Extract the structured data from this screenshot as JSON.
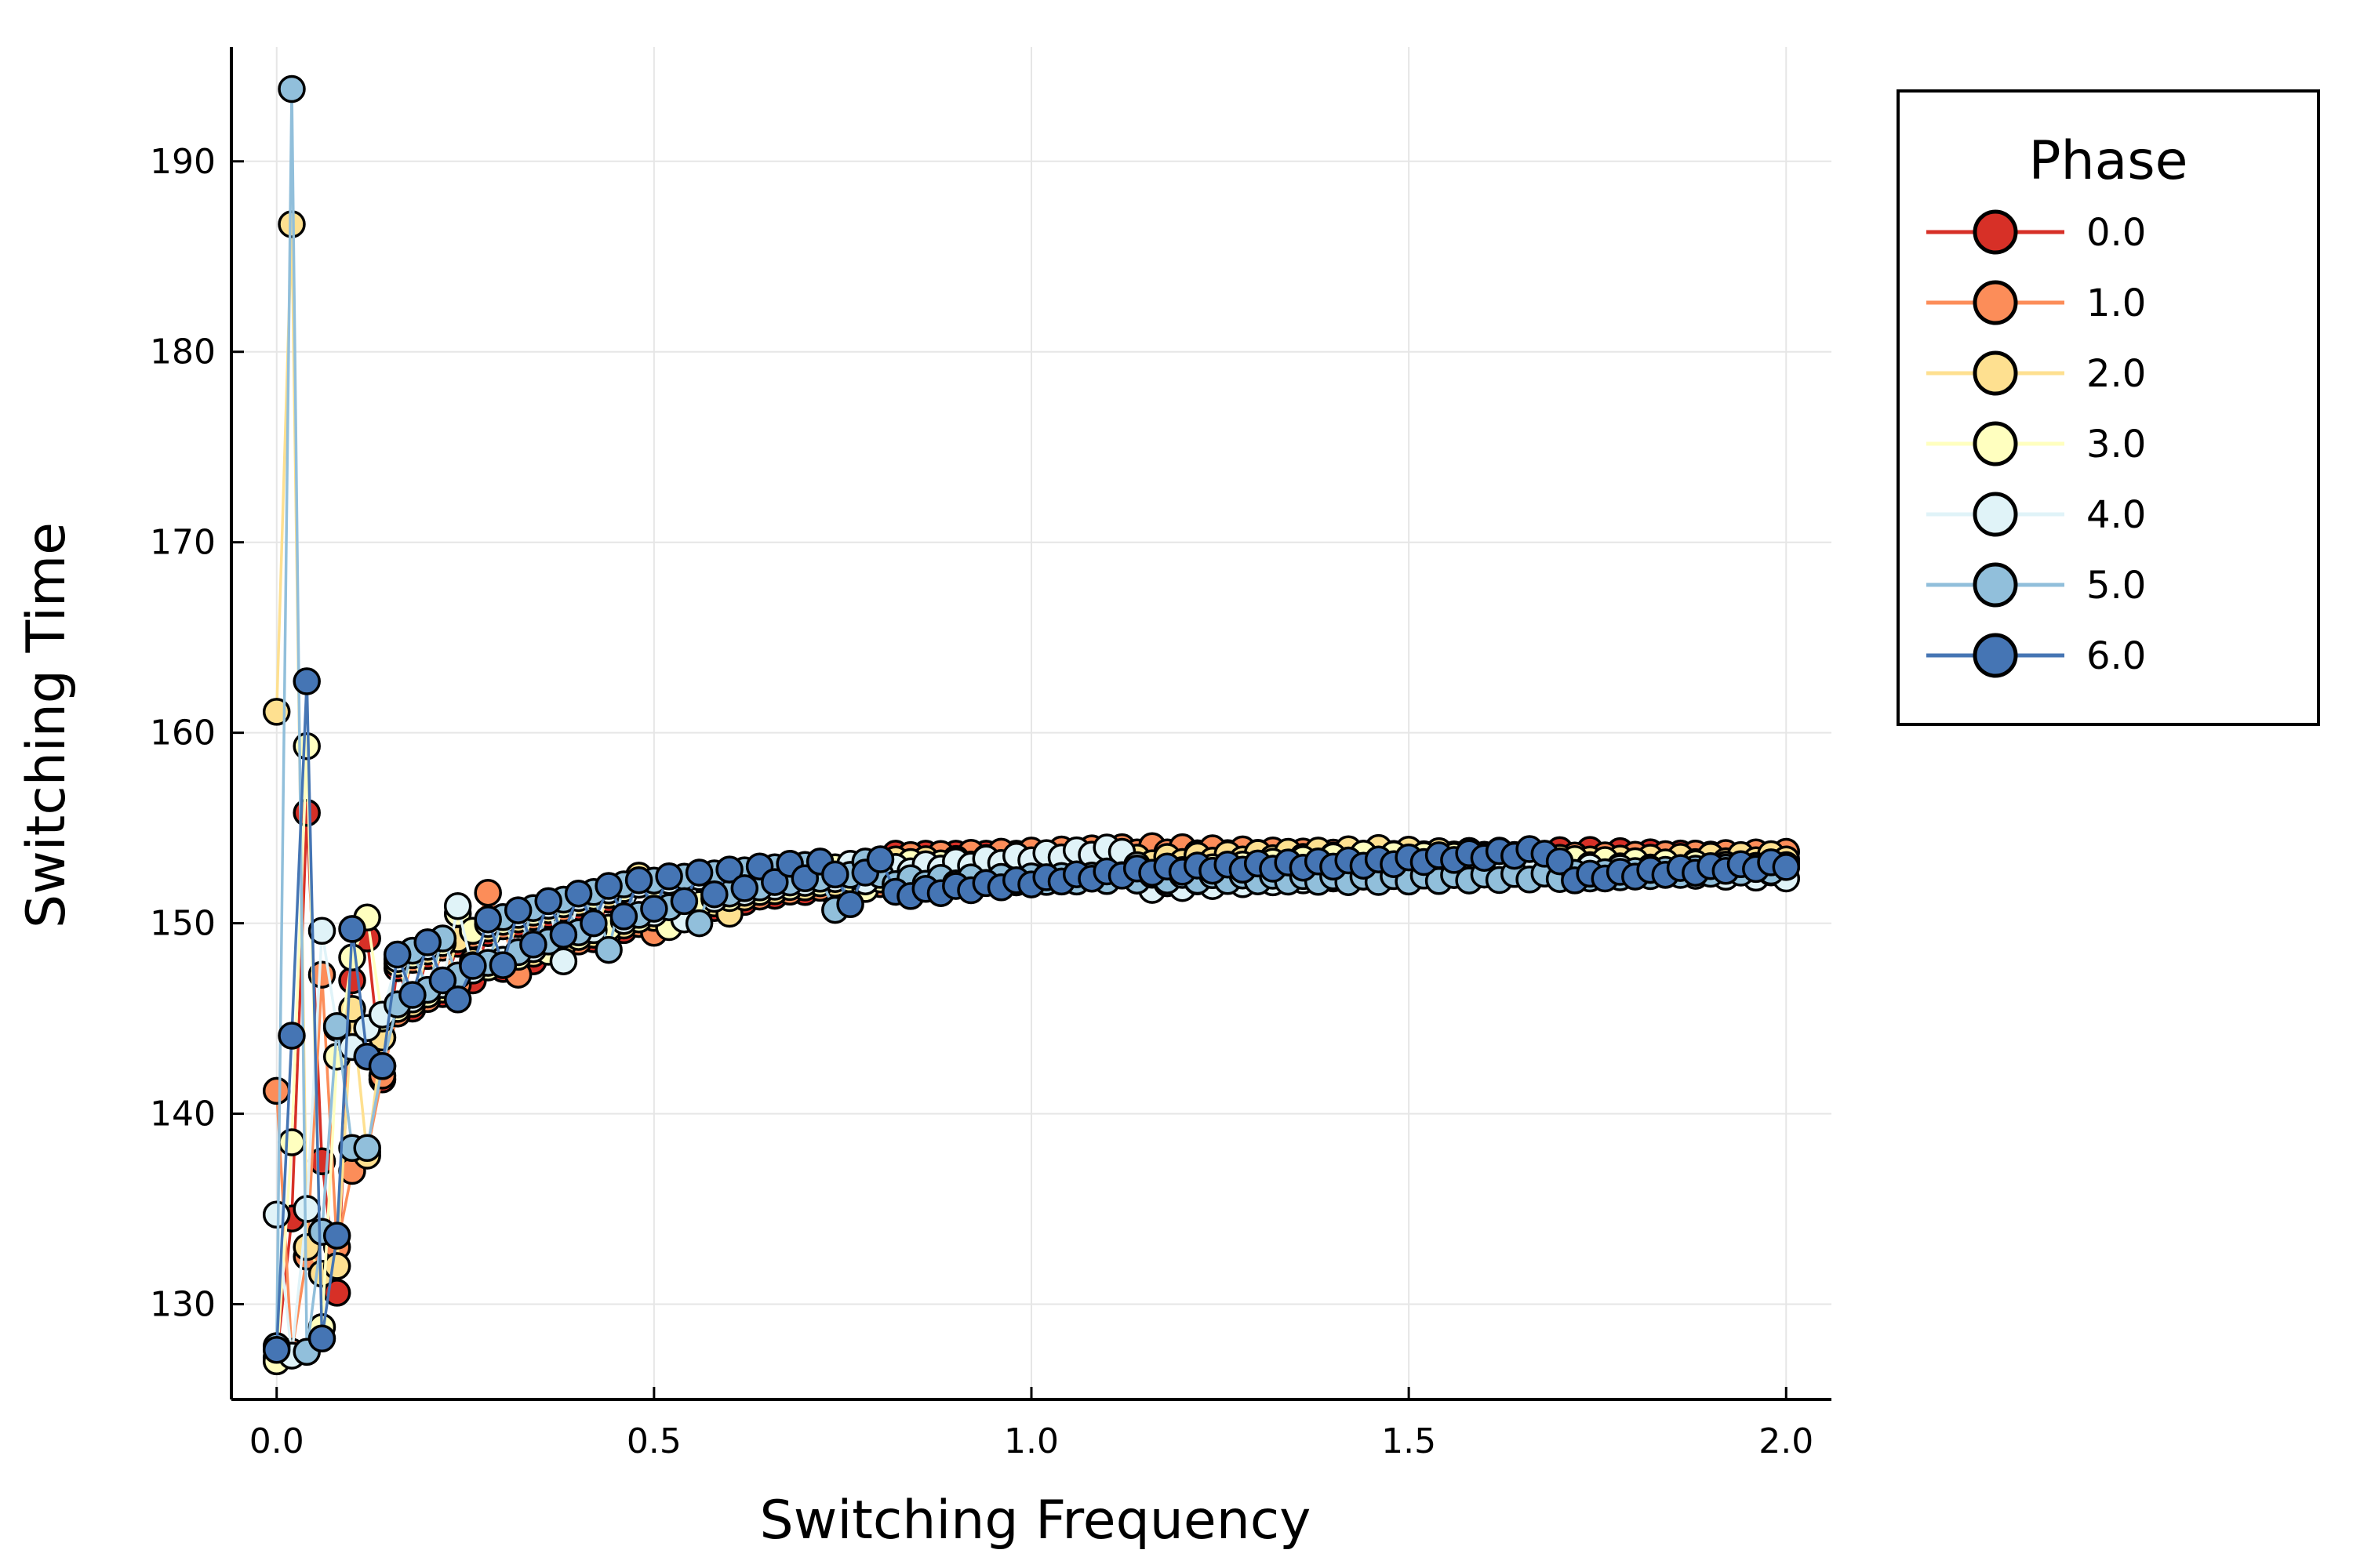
{
  "chart_data": {
    "type": "line",
    "title": "",
    "xlabel": "Switching Frequency",
    "ylabel": "Switching Time",
    "xlim": [
      -0.06,
      2.06
    ],
    "ylim": [
      125,
      196
    ],
    "x_ticks": [
      0.0,
      0.5,
      1.0,
      1.5,
      2.0
    ],
    "x_tick_labels": [
      "0.0",
      "0.5",
      "1.0",
      "1.5",
      "2.0"
    ],
    "y_ticks": [
      130,
      140,
      150,
      160,
      170,
      180,
      190
    ],
    "y_tick_labels": [
      "130",
      "140",
      "150",
      "160",
      "170",
      "180",
      "190"
    ],
    "grid": true,
    "legend": {
      "title": "Phase",
      "position": "outside-right-top"
    },
    "series": [
      {
        "name": "0.0",
        "color": "#d73027",
        "early": [
          [
            0.0,
            127.2
          ],
          [
            0.02,
            134.5
          ],
          [
            0.04,
            155.8
          ],
          [
            0.06,
            137.5
          ],
          [
            0.08,
            130.6
          ],
          [
            0.1,
            147.0
          ],
          [
            0.12,
            149.2
          ],
          [
            0.14,
            141.8
          ]
        ],
        "branch_dips": [
          [
            0.26,
            147.0
          ],
          [
            0.34,
            148.0
          ],
          [
            0.48,
            150.0
          ],
          [
            0.74,
            151.5
          ]
        ],
        "plateau": [
          [
            0.82,
            153.5
          ],
          [
            1.16,
            153.5
          ],
          [
            1.44,
            153.6
          ],
          [
            1.74,
            153.7
          ],
          [
            2.0,
            153.3
          ]
        ]
      },
      {
        "name": "1.0",
        "color": "#fc8d59",
        "early": [
          [
            0.0,
            141.2
          ],
          [
            0.02,
            127.5
          ],
          [
            0.04,
            132.5
          ],
          [
            0.06,
            147.3
          ],
          [
            0.08,
            133.0
          ],
          [
            0.1,
            137.0
          ],
          [
            0.12,
            138.0
          ],
          [
            0.14,
            142.0
          ]
        ],
        "branch_dips": [
          [
            0.28,
            151.6
          ],
          [
            0.32,
            147.3
          ],
          [
            0.5,
            149.5
          ],
          [
            0.76,
            151.2
          ]
        ],
        "plateau": [
          [
            0.82,
            153.4
          ],
          [
            1.16,
            153.9
          ],
          [
            1.44,
            153.5
          ],
          [
            1.74,
            153.4
          ],
          [
            2.0,
            153.6
          ]
        ]
      },
      {
        "name": "2.0",
        "color": "#fee090",
        "early": [
          [
            0.0,
            161.1
          ],
          [
            0.02,
            186.7
          ],
          [
            0.04,
            133.0
          ],
          [
            0.06,
            131.6
          ],
          [
            0.08,
            132.0
          ],
          [
            0.1,
            145.5
          ],
          [
            0.12,
            137.8
          ],
          [
            0.14,
            144.0
          ]
        ],
        "branch_dips": [
          [
            0.26,
            148.0
          ],
          [
            0.48,
            152.5
          ],
          [
            0.6,
            150.5
          ],
          [
            0.78,
            152.0
          ]
        ],
        "plateau": [
          [
            0.82,
            153.2
          ],
          [
            1.16,
            153.3
          ],
          [
            1.46,
            153.8
          ],
          [
            1.74,
            153.2
          ],
          [
            2.0,
            153.5
          ]
        ]
      },
      {
        "name": "3.0",
        "color": "#ffffbf",
        "early": [
          [
            0.0,
            127.0
          ],
          [
            0.02,
            138.5
          ],
          [
            0.04,
            159.3
          ],
          [
            0.06,
            128.8
          ],
          [
            0.08,
            143.0
          ],
          [
            0.1,
            148.2
          ],
          [
            0.12,
            150.3
          ],
          [
            0.14,
            145.0
          ]
        ],
        "branch_dips": [
          [
            0.24,
            150.5
          ],
          [
            0.36,
            148.5
          ],
          [
            0.52,
            149.8
          ],
          [
            0.78,
            151.8
          ]
        ],
        "plateau": [
          [
            0.82,
            153.1
          ],
          [
            1.16,
            152.5
          ],
          [
            1.44,
            153.5
          ],
          [
            1.74,
            153.2
          ],
          [
            2.0,
            152.8
          ]
        ]
      },
      {
        "name": "4.0",
        "color": "#e0f3f8",
        "early": [
          [
            0.0,
            134.7
          ],
          [
            0.02,
            127.3
          ],
          [
            0.04,
            135.0
          ],
          [
            0.06,
            149.6
          ],
          [
            0.08,
            144.5
          ],
          [
            0.1,
            143.5
          ],
          [
            0.12,
            144.5
          ],
          [
            0.14,
            145.2
          ]
        ],
        "branch_dips": [
          [
            0.24,
            150.9
          ],
          [
            0.38,
            148.0
          ],
          [
            0.54,
            150.2
          ],
          [
            0.78,
            152.2
          ]
        ],
        "plateau": [
          [
            0.82,
            152.8
          ],
          [
            1.12,
            153.9
          ],
          [
            1.16,
            151.9
          ],
          [
            1.44,
            152.6
          ],
          [
            1.74,
            152.8
          ],
          [
            2.0,
            152.5
          ]
        ]
      },
      {
        "name": "5.0",
        "color": "#91bfdb",
        "early": [
          [
            0.0,
            127.8
          ],
          [
            0.02,
            193.8
          ],
          [
            0.04,
            127.5
          ],
          [
            0.06,
            133.8
          ],
          [
            0.08,
            144.6
          ],
          [
            0.1,
            138.2
          ],
          [
            0.12,
            138.2
          ],
          [
            0.14,
            142.5
          ]
        ],
        "branch_dips": [
          [
            0.26,
            147.8
          ],
          [
            0.44,
            148.6
          ],
          [
            0.56,
            150.0
          ],
          [
            0.74,
            150.7
          ]
        ],
        "plateau": [
          [
            0.82,
            152.2
          ],
          [
            1.16,
            152.4
          ],
          [
            1.44,
            152.3
          ],
          [
            1.74,
            152.5
          ],
          [
            2.0,
            152.9
          ]
        ]
      },
      {
        "name": "6.0",
        "color": "#4575b4",
        "early": [
          [
            0.0,
            127.6
          ],
          [
            0.02,
            144.1
          ],
          [
            0.04,
            162.7
          ],
          [
            0.06,
            128.2
          ],
          [
            0.08,
            133.6
          ],
          [
            0.1,
            149.7
          ],
          [
            0.12,
            143.0
          ],
          [
            0.14,
            142.5
          ]
        ],
        "branch_dips": [
          [
            0.24,
            146.0
          ],
          [
            0.3,
            147.8
          ],
          [
            0.42,
            150.0
          ],
          [
            0.76,
            151.0
          ]
        ],
        "plateau": [
          [
            0.82,
            151.5
          ],
          [
            1.16,
            152.8
          ],
          [
            1.46,
            153.2
          ],
          [
            1.68,
            153.8
          ],
          [
            1.72,
            152.4
          ],
          [
            2.0,
            153.1
          ]
        ]
      }
    ]
  }
}
